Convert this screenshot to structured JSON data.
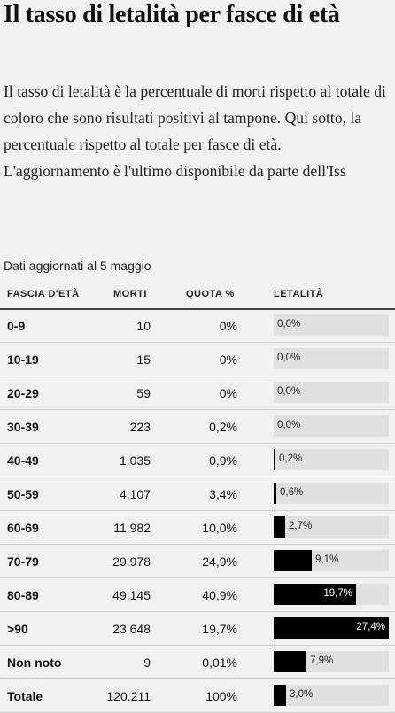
{
  "title": "Il tasso di letalità per fasce di età",
  "intro": "Il tasso di letalità è la percentuale di morti rispetto al totale di coloro che sono risultati positivi al tampone. Qui sotto, la percentuale rispetto al totale per fasce di età. L'aggiornamento è l'ultimo disponibile da parte dell'Iss",
  "updated": "Dati aggiornati al 5 maggio",
  "headers": {
    "age": "FASCIA D'ETÀ",
    "morti": "MORTI",
    "quota": "QUOTA %",
    "letalita": "LETALITÀ"
  },
  "chart_data": {
    "type": "table",
    "title": "Il tasso di letalità per fasce di età",
    "columns": [
      "FASCIA D'ETÀ",
      "MORTI",
      "QUOTA %",
      "LETALITÀ"
    ],
    "bar_max": 27.4,
    "rows": [
      {
        "age": "0-9",
        "morti": "10",
        "quota": "0%",
        "letalita": 0.0,
        "letalita_label": "0,0%"
      },
      {
        "age": "10-19",
        "morti": "15",
        "quota": "0%",
        "letalita": 0.0,
        "letalita_label": "0,0%"
      },
      {
        "age": "20-29",
        "morti": "59",
        "quota": "0%",
        "letalita": 0.0,
        "letalita_label": "0,0%"
      },
      {
        "age": "30-39",
        "morti": "223",
        "quota": "0,2%",
        "letalita": 0.0,
        "letalita_label": "0,0%"
      },
      {
        "age": "40-49",
        "morti": "1.035",
        "quota": "0,9%",
        "letalita": 0.2,
        "letalita_label": "0,2%"
      },
      {
        "age": "50-59",
        "morti": "4.107",
        "quota": "3,4%",
        "letalita": 0.6,
        "letalita_label": "0,6%"
      },
      {
        "age": "60-69",
        "morti": "11.982",
        "quota": "10,0%",
        "letalita": 2.7,
        "letalita_label": "2,7%"
      },
      {
        "age": "70-79",
        "morti": "29.978",
        "quota": "24,9%",
        "letalita": 9.1,
        "letalita_label": "9,1%"
      },
      {
        "age": "80-89",
        "morti": "49.145",
        "quota": "40,9%",
        "letalita": 19.7,
        "letalita_label": "19,7%"
      },
      {
        "age": ">90",
        "morti": "23.648",
        "quota": "19,7%",
        "letalita": 27.4,
        "letalita_label": "27,4%"
      },
      {
        "age": "Non noto",
        "morti": "9",
        "quota": "0,01%",
        "letalita": 7.9,
        "letalita_label": "7,9%"
      },
      {
        "age": "Totale",
        "morti": "120.211",
        "quota": "100%",
        "letalita": 3.0,
        "letalita_label": "3,0%"
      }
    ]
  }
}
